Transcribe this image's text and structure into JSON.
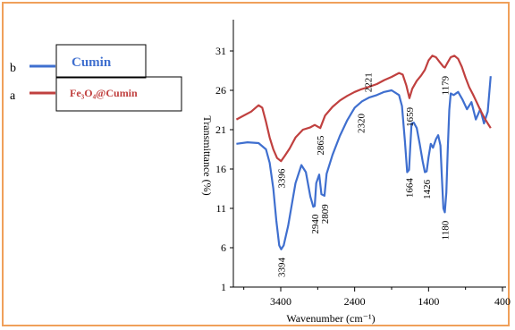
{
  "chart_data": {
    "type": "line",
    "xlabel": "Wavenumber (cm⁻¹)",
    "ylabel": "Transmittance (%)",
    "x_reversed": true,
    "xlim": [
      4000,
      400
    ],
    "ylim": [
      1,
      33
    ],
    "x_ticks": [
      3400,
      2400,
      1400,
      400
    ],
    "y_ticks": [
      1,
      6,
      11,
      16,
      21,
      26,
      31
    ],
    "grid": false,
    "legend_position": "top-left",
    "series": [
      {
        "key": "b",
        "name": "Cumin",
        "color": "#3f6fcf",
        "points": [
          [
            4000,
            19.2
          ],
          [
            3850,
            19.4
          ],
          [
            3700,
            19.3
          ],
          [
            3600,
            18.5
          ],
          [
            3550,
            16.8
          ],
          [
            3500,
            13.5
          ],
          [
            3460,
            9.5
          ],
          [
            3420,
            6.3
          ],
          [
            3394,
            5.8
          ],
          [
            3360,
            6.3
          ],
          [
            3300,
            8.8
          ],
          [
            3250,
            11.5
          ],
          [
            3200,
            14.2
          ],
          [
            3120,
            16.5
          ],
          [
            3060,
            15.6
          ],
          [
            3000,
            12.5
          ],
          [
            2960,
            11.2
          ],
          [
            2940,
            11.3
          ],
          [
            2920,
            14.2
          ],
          [
            2880,
            15.3
          ],
          [
            2850,
            12.8
          ],
          [
            2809,
            12.6
          ],
          [
            2780,
            15.4
          ],
          [
            2700,
            17.8
          ],
          [
            2600,
            20.2
          ],
          [
            2500,
            22.2
          ],
          [
            2400,
            23.8
          ],
          [
            2300,
            24.6
          ],
          [
            2200,
            25.1
          ],
          [
            2100,
            25.4
          ],
          [
            2000,
            25.8
          ],
          [
            1900,
            26.0
          ],
          [
            1800,
            25.4
          ],
          [
            1760,
            24.0
          ],
          [
            1720,
            19.5
          ],
          [
            1690,
            15.6
          ],
          [
            1664,
            15.9
          ],
          [
            1650,
            18.5
          ],
          [
            1630,
            21.8
          ],
          [
            1600,
            21.9
          ],
          [
            1560,
            21.2
          ],
          [
            1520,
            19.2
          ],
          [
            1480,
            17.0
          ],
          [
            1450,
            15.6
          ],
          [
            1426,
            15.7
          ],
          [
            1400,
            17.5
          ],
          [
            1370,
            19.2
          ],
          [
            1340,
            18.7
          ],
          [
            1300,
            19.8
          ],
          [
            1270,
            20.3
          ],
          [
            1240,
            19.0
          ],
          [
            1220,
            15.0
          ],
          [
            1200,
            11.0
          ],
          [
            1180,
            10.5
          ],
          [
            1160,
            13.0
          ],
          [
            1140,
            18.5
          ],
          [
            1120,
            23.5
          ],
          [
            1100,
            25.6
          ],
          [
            1060,
            25.4
          ],
          [
            1000,
            25.8
          ],
          [
            940,
            24.8
          ],
          [
            880,
            23.6
          ],
          [
            820,
            24.5
          ],
          [
            760,
            22.3
          ],
          [
            700,
            23.6
          ],
          [
            650,
            21.8
          ],
          [
            600,
            23.3
          ],
          [
            560,
            27.8
          ]
        ]
      },
      {
        "key": "a",
        "name": "Fe₃O₄@Cumin",
        "color": "#c0403f",
        "points": [
          [
            4000,
            22.3
          ],
          [
            3800,
            23.3
          ],
          [
            3700,
            24.1
          ],
          [
            3650,
            23.8
          ],
          [
            3600,
            22.0
          ],
          [
            3550,
            20.0
          ],
          [
            3500,
            18.5
          ],
          [
            3450,
            17.4
          ],
          [
            3396,
            17.0
          ],
          [
            3350,
            17.6
          ],
          [
            3280,
            18.6
          ],
          [
            3200,
            20.0
          ],
          [
            3100,
            21.0
          ],
          [
            3000,
            21.3
          ],
          [
            2940,
            21.6
          ],
          [
            2865,
            21.2
          ],
          [
            2800,
            22.8
          ],
          [
            2700,
            23.9
          ],
          [
            2600,
            24.7
          ],
          [
            2500,
            25.3
          ],
          [
            2400,
            25.8
          ],
          [
            2320,
            26.1
          ],
          [
            2221,
            26.4
          ],
          [
            2100,
            26.8
          ],
          [
            2000,
            27.3
          ],
          [
            1900,
            27.7
          ],
          [
            1800,
            28.2
          ],
          [
            1750,
            28.0
          ],
          [
            1700,
            26.6
          ],
          [
            1659,
            25.0
          ],
          [
            1620,
            26.2
          ],
          [
            1560,
            27.2
          ],
          [
            1500,
            27.9
          ],
          [
            1450,
            28.6
          ],
          [
            1400,
            29.8
          ],
          [
            1350,
            30.4
          ],
          [
            1300,
            30.2
          ],
          [
            1250,
            29.6
          ],
          [
            1200,
            29.0
          ],
          [
            1179,
            28.9
          ],
          [
            1150,
            29.4
          ],
          [
            1100,
            30.2
          ],
          [
            1050,
            30.4
          ],
          [
            1000,
            30.0
          ],
          [
            950,
            29.0
          ],
          [
            900,
            27.6
          ],
          [
            850,
            26.4
          ],
          [
            800,
            25.5
          ],
          [
            750,
            24.5
          ],
          [
            700,
            23.5
          ],
          [
            650,
            22.6
          ],
          [
            600,
            21.8
          ],
          [
            560,
            21.2
          ]
        ]
      }
    ],
    "annotations": [
      {
        "label": "3394",
        "x": 3394,
        "y": 3.5
      },
      {
        "label": "3396",
        "x": 3396,
        "y": 14.8
      },
      {
        "label": "2940",
        "x": 2940,
        "y": 9.0
      },
      {
        "label": "2809",
        "x": 2809,
        "y": 10.3
      },
      {
        "label": "2865",
        "x": 2865,
        "y": 19.0
      },
      {
        "label": "2320",
        "x": 2320,
        "y": 21.8
      },
      {
        "label": "2221",
        "x": 2221,
        "y": 27.0
      },
      {
        "label": "1664",
        "x": 1664,
        "y": 13.6
      },
      {
        "label": "1426",
        "x": 1426,
        "y": 13.4
      },
      {
        "label": "1659",
        "x": 1659,
        "y": 22.6
      },
      {
        "label": "1180",
        "x": 1180,
        "y": 8.2
      },
      {
        "label": "1179",
        "x": 1179,
        "y": 26.6
      }
    ]
  }
}
